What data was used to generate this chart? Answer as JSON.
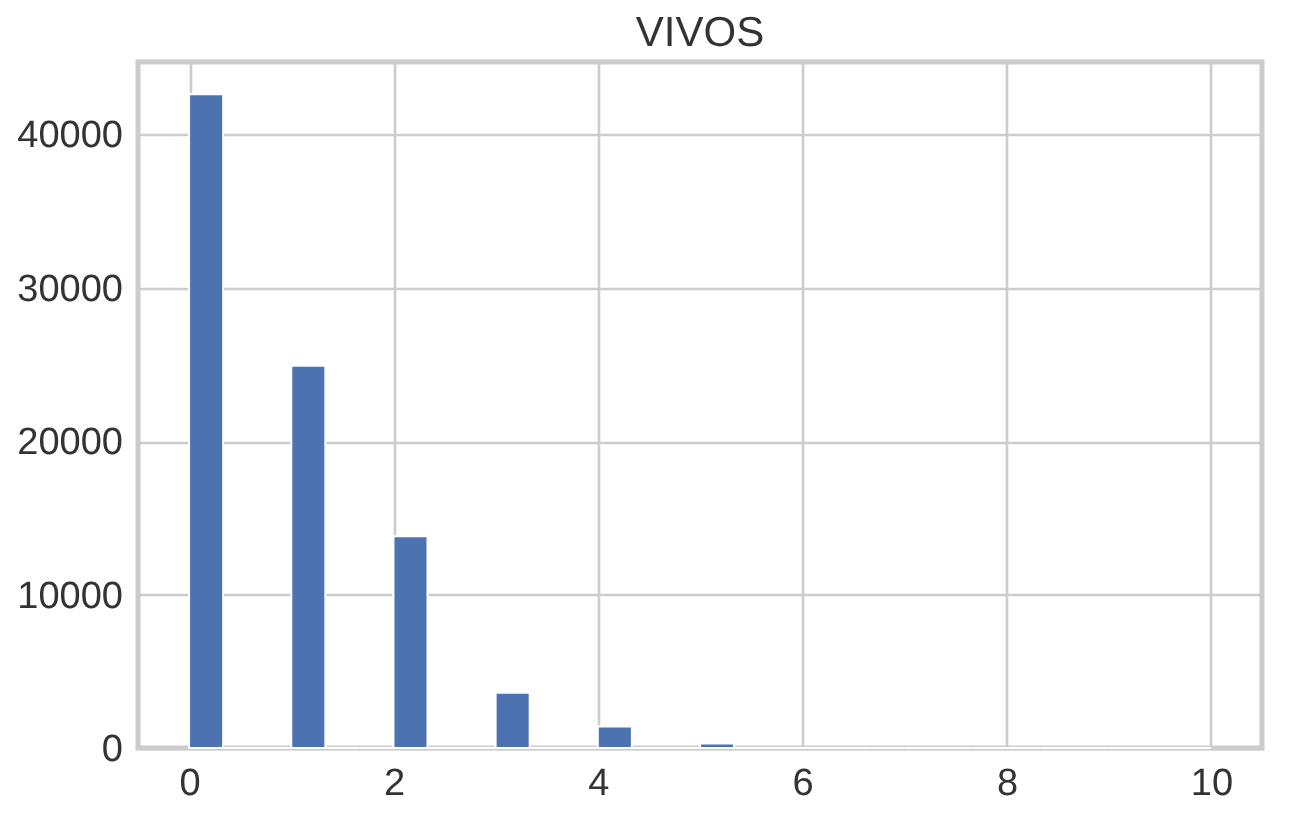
{
  "chart_data": {
    "type": "histogram",
    "title": "VIVOS",
    "bins": [
      0,
      0.3333,
      0.6667,
      1,
      1.3333,
      1.6667,
      2,
      2.3333,
      2.6667,
      3,
      3.3333,
      3.6667,
      4,
      4.3333,
      4.6667,
      5,
      5.3333,
      5.6667,
      6,
      6.3333,
      6.6667,
      7,
      7.3333,
      7.6667,
      8,
      8.3333,
      8.6667,
      9,
      9.3333,
      9.6667,
      10
    ],
    "values": [
      42600,
      0,
      0,
      24900,
      0,
      0,
      13800,
      0,
      0,
      3600,
      0,
      0,
      1400,
      0,
      0,
      300,
      0,
      0,
      0,
      0,
      0,
      0,
      0,
      0,
      0,
      0,
      0,
      0,
      0,
      0
    ],
    "color": "#4c72b0",
    "xlim": [
      -0.5,
      10.5
    ],
    "xticks": [
      0,
      2,
      4,
      6,
      8,
      10
    ],
    "ylim": [
      0,
      44700
    ],
    "yticks": [
      0,
      10000,
      20000,
      30000,
      40000
    ],
    "grid": true
  }
}
